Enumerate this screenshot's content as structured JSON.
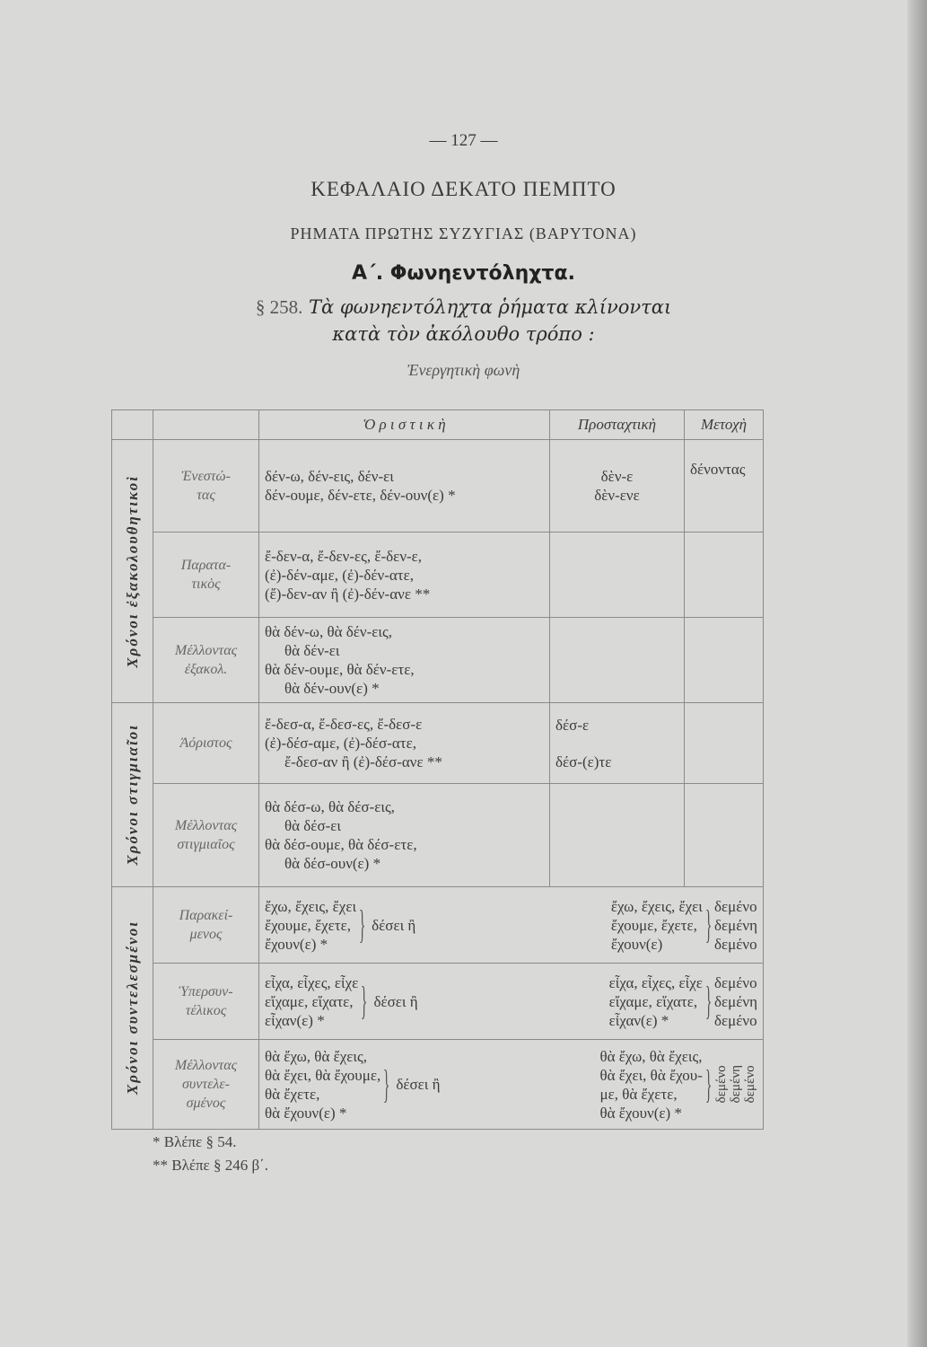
{
  "page_number": "— 127 —",
  "chapter": "ΚΕΦΑΛΑΙΟ ΔΕΚΑΤΟ ΠΕΜΠΤΟ",
  "subtitle": "ΡΗΜΑΤΑ ΠΡΩΤΗΣ ΣΥΖΥΓΙΑΣ (ΒΑΡΥΤΟΝΑ)",
  "section": "Α΄. Φωνηεντόληχτα.",
  "paragraph": {
    "number": "§ 258.",
    "line1": "Τὰ φωνηεντόληχτα ῥήματα κλίνονται",
    "line2": "κατὰ τὸν ἀκόλουθο τρόπο :"
  },
  "voice": "Ἐνεργητικὴ φωνὴ",
  "headers": {
    "indicative": "Ὁ ρ ι σ τ ι κ ὴ",
    "imperative": "Προσταχτικὴ",
    "participle": "Μετοχὴ"
  },
  "groups": [
    "Χρόνοι ἐξακολουθητικοὶ",
    "Χρόνοι στιγμιαῖοι",
    "Χρόνοι συντελεσμένοι"
  ],
  "rows": [
    {
      "tense": [
        "Ἐνεστώ-",
        "τας"
      ],
      "ind": [
        "δέν-ω, δέν-εις, δέν-ει",
        "δέν-ουμε, δέν-ετε, δέν-ουν(ε) *"
      ],
      "imp": [
        "δὲν-ε",
        "δὲν-ενε"
      ],
      "part": "δένοντας"
    },
    {
      "tense": [
        "Παρατα-",
        "τικὸς"
      ],
      "ind": [
        "ἔ-δεν-α, ἔ-δεν-ες, ἔ-δεν-ε,",
        "(ἐ)-δέν-αμε, (ἐ)-δέν-ατε,",
        "(ἔ)-δεν-αν ἢ (ἐ)-δέν-ανε **"
      ]
    },
    {
      "tense": [
        "Μέλλοντας",
        "ἐξακολ."
      ],
      "ind": [
        "θὰ δέν-ω, θὰ δέν-εις,",
        "θὰ δέν-ει",
        "θὰ δέν-ουμε, θὰ δέν-ετε,",
        "θὰ δέν-ουν(ε) *"
      ]
    },
    {
      "tense": [
        "Ἀόριστος"
      ],
      "ind": [
        "ἔ-δεσ-α, ἔ-δεσ-ες, ἔ-δεσ-ε",
        "(ἐ)-δέσ-αμε, (ἐ)-δέσ-ατε,",
        "ἔ-δεσ-αν ἢ (ἐ)-δέσ-ανε **"
      ],
      "imp": [
        "δέσ-ε",
        "δέσ-(ε)τε"
      ]
    },
    {
      "tense": [
        "Μέλλοντας",
        "στιγμιαῖος"
      ],
      "ind": [
        "θὰ δέσ-ω, θὰ δέσ-εις,",
        "θὰ δέσ-ει",
        "θὰ δέσ-ουμε, θὰ δέσ-ετε,",
        "θὰ δέσ-ουν(ε) *"
      ]
    },
    {
      "tense": [
        "Παρακεί-",
        "μενος"
      ],
      "forms": [
        "ἔχω, ἔχεις, ἔχει",
        "ἔχουμε, ἔχετε,",
        "ἔχουν(ε) *"
      ],
      "aux": "δέσει ἢ",
      "forms2": [
        "ἔχω, ἔχεις, ἔχει",
        "ἔχουμε, ἔχετε,",
        "ἔχουν(ε)"
      ],
      "part": [
        "δεμένο",
        "δεμένη",
        "δεμένο"
      ]
    },
    {
      "tense": [
        "Ὑπερσυν-",
        "τέλικος"
      ],
      "forms": [
        "εἶχα, εἶχες, εἶχε",
        "εἴχαμε, εἴχατε,",
        "εἶχαν(ε) *"
      ],
      "aux": "δέσει ἢ",
      "forms2": [
        "εἶχα, εἶχες, εἶχε",
        "εἴχαμε, εἴχατε,",
        "εἶχαν(ε) *"
      ],
      "part": [
        "δεμένο",
        "δεμένη",
        "δεμένο"
      ]
    },
    {
      "tense": [
        "Μέλλοντας",
        "συντελε-",
        "σμένος"
      ],
      "forms": [
        "θὰ ἔχω, θὰ ἔχεις,",
        "θὰ ἔχει, θὰ ἔχουμε,",
        "θὰ ἔχετε,",
        "θὰ ἔχουν(ε) *"
      ],
      "aux": "δέσει ἢ",
      "forms2": [
        "θὰ ἔχω, θὰ ἔχεις,",
        "θὰ ἔχει, θὰ ἔχου-",
        "με, θὰ ἔχετε,",
        "θὰ ἔχουν(ε) *"
      ],
      "part": [
        "δεμένο",
        "δεμένη",
        "δεμένο"
      ]
    }
  ],
  "footnotes": [
    "* Βλέπε § 54.",
    "** Βλέπε § 246 β΄."
  ]
}
